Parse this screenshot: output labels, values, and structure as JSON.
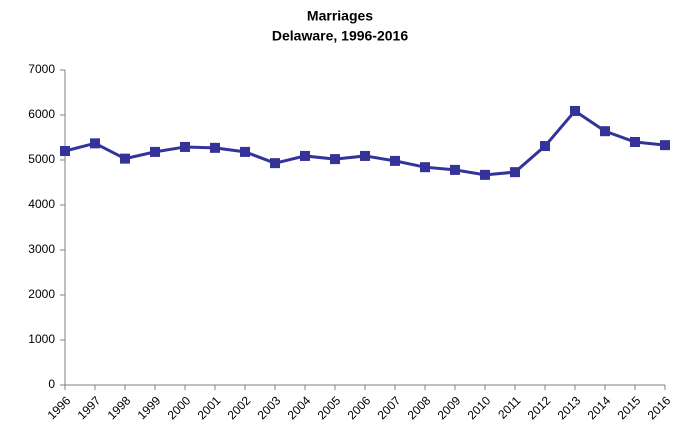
{
  "chart_data": {
    "type": "line",
    "title": "Marriages",
    "subtitle": "Delaware, 1996-2016",
    "categories": [
      "1996",
      "1997",
      "1998",
      "1999",
      "2000",
      "2001",
      "2002",
      "2003",
      "2004",
      "2005",
      "2006",
      "2007",
      "2008",
      "2009",
      "2010",
      "2011",
      "2012",
      "2013",
      "2014",
      "2015",
      "2016"
    ],
    "series": [
      {
        "name": "Marriages",
        "color": "#333399",
        "values": [
          5200,
          5370,
          5030,
          5180,
          5290,
          5270,
          5180,
          4930,
          5090,
          5020,
          5090,
          4980,
          4840,
          4780,
          4670,
          4730,
          5310,
          6090,
          5640,
          5400,
          5330
        ]
      }
    ],
    "ylim": [
      0,
      7000
    ],
    "yticks": [
      0,
      1000,
      2000,
      3000,
      4000,
      5000,
      6000,
      7000
    ],
    "grid": false
  }
}
